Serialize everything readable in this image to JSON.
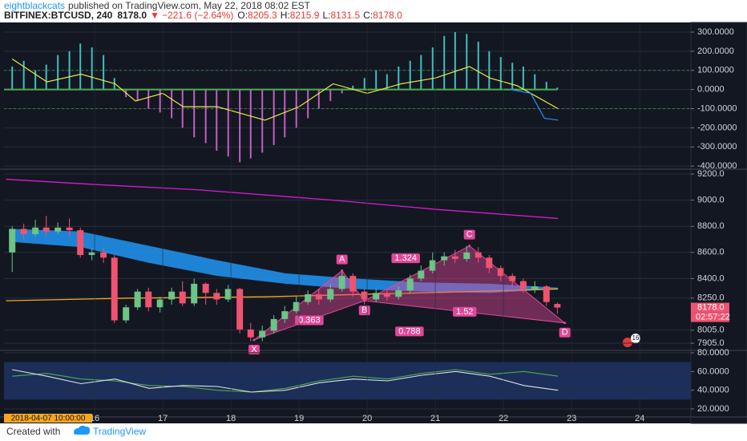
{
  "header": {
    "author": "eightblackcats",
    "published": "published on TradingView.com, May 22, 2018 08:02 EST",
    "symbol": "BITFINEX:BTCUSD, 240",
    "last": "8178.0",
    "arrow": "▼",
    "change": "−221.6 (−2.64%)",
    "ohlc": [
      {
        "label": "O:",
        "value": "8205.3"
      },
      {
        "label": "H:",
        "value": "8215.9"
      },
      {
        "label": "L:",
        "value": "8131.5"
      },
      {
        "label": "C:",
        "value": "8178.0"
      }
    ]
  },
  "footer": {
    "text": "Created with",
    "brand": "TradingView"
  },
  "badge": "16",
  "chart_data": [
    {
      "type": "oscillator",
      "xlim": [
        14.67,
        24.75
      ],
      "ylim": [
        -412,
        342
      ],
      "yticks": [
        {
          "value": 300,
          "label": "300.0000"
        },
        {
          "value": 200,
          "label": "200.0000"
        },
        {
          "value": 100,
          "label": "100.0000"
        },
        {
          "value": 0,
          "label": "0.0000"
        },
        {
          "value": -100,
          "label": "-100.0000"
        },
        {
          "value": -200,
          "label": "-200.0000"
        },
        {
          "value": -300,
          "label": "-300.0000"
        },
        {
          "value": -400,
          "label": "-400.0000"
        }
      ],
      "levels": [
        100,
        -100
      ],
      "level_color": "#4caf50",
      "zero_color": "#4caf50",
      "pos_color": "#3fbfbf",
      "neg_color": "#c45ec4",
      "x": [
        14.79,
        14.96,
        15.13,
        15.29,
        15.46,
        15.63,
        15.79,
        15.96,
        16.13,
        16.29,
        16.46,
        16.63,
        16.79,
        16.96,
        17.13,
        17.29,
        17.46,
        17.63,
        17.79,
        17.96,
        18.13,
        18.29,
        18.46,
        18.63,
        18.79,
        18.96,
        19.13,
        19.29,
        19.46,
        19.63,
        19.79,
        19.96,
        20.13,
        20.29,
        20.46,
        20.63,
        20.79,
        20.96,
        21.13,
        21.29,
        21.46,
        21.63,
        21.79,
        21.96,
        22.13,
        22.29,
        22.46,
        22.63,
        22.79
      ],
      "values": [
        120,
        150,
        100,
        130,
        180,
        200,
        240,
        220,
        180,
        60,
        -40,
        -60,
        -100,
        -120,
        -150,
        -200,
        -250,
        -280,
        -320,
        -350,
        -380,
        -360,
        -330,
        -290,
        -250,
        -200,
        -150,
        -100,
        -60,
        -20,
        20,
        60,
        100,
        80,
        120,
        150,
        180,
        220,
        280,
        300,
        290,
        250,
        200,
        170,
        140,
        120,
        80,
        40,
        10
      ],
      "series": [
        {
          "color": "#e8e84a",
          "x": [
            14.79,
            15.3,
            15.8,
            16.3,
            16.6,
            17.0,
            17.3,
            17.8,
            18.2,
            18.5,
            19.0,
            19.5,
            20.0,
            20.5,
            21.0,
            21.5,
            21.8,
            22.2,
            22.5,
            22.8
          ],
          "values": [
            160,
            40,
            80,
            30,
            -60,
            -20,
            -90,
            -90,
            -130,
            -160,
            -90,
            30,
            -20,
            30,
            60,
            120,
            60,
            20,
            -40,
            -100
          ]
        },
        {
          "color": "#2d8cf0",
          "x": [
            22.1,
            22.4,
            22.6,
            22.8
          ],
          "values": [
            0,
            -20,
            -150,
            -160
          ]
        }
      ]
    },
    {
      "type": "candlestick",
      "xlim": [
        14.67,
        24.75
      ],
      "ylim": [
        7850,
        9231
      ],
      "yticks": [
        {
          "value": 9200,
          "label": "9200.0"
        },
        {
          "value": 9000,
          "label": "9000.0"
        },
        {
          "value": 8800,
          "label": "8800.0"
        },
        {
          "value": 8600,
          "label": "8600.0"
        },
        {
          "value": 8400,
          "label": "8400.0"
        },
        {
          "value": 8250,
          "label": "8250.0"
        },
        {
          "value": 8005,
          "label": "8005.0"
        },
        {
          "value": 7905,
          "label": "7905.0"
        }
      ],
      "last_price": {
        "value": 8178,
        "label": "8178.0"
      },
      "countdown": "02:57:22",
      "up_color": "#6cc486",
      "down_color": "#ef5370",
      "x": [
        14.79,
        14.96,
        15.13,
        15.29,
        15.46,
        15.63,
        15.79,
        15.96,
        16.13,
        16.29,
        16.46,
        16.63,
        16.79,
        16.96,
        17.13,
        17.29,
        17.46,
        17.63,
        17.79,
        17.96,
        18.13,
        18.29,
        18.46,
        18.63,
        18.79,
        18.96,
        19.13,
        19.29,
        19.46,
        19.63,
        19.79,
        19.96,
        20.13,
        20.29,
        20.46,
        20.63,
        20.79,
        20.96,
        21.13,
        21.29,
        21.46,
        21.63,
        21.79,
        21.96,
        22.13,
        22.29,
        22.46,
        22.63,
        22.79
      ],
      "open": [
        8600,
        8780,
        8740,
        8790,
        8760,
        8790,
        8770,
        8580,
        8600,
        8560,
        8080,
        8180,
        8300,
        8180,
        8240,
        8300,
        8210,
        8360,
        8290,
        8240,
        8320,
        8010,
        7950,
        8000,
        8090,
        8150,
        8220,
        8280,
        8240,
        8320,
        8420,
        8300,
        8240,
        8290,
        8260,
        8310,
        8400,
        8460,
        8540,
        8570,
        8550,
        8600,
        8560,
        8480,
        8420,
        8380,
        8320,
        8340,
        8205.3
      ],
      "high": [
        8800,
        8820,
        8850,
        8880,
        8830,
        8860,
        8790,
        8630,
        8640,
        8580,
        8200,
        8320,
        8330,
        8260,
        8330,
        8380,
        8400,
        8370,
        8320,
        8350,
        8330,
        8060,
        8040,
        8120,
        8190,
        8260,
        8310,
        8320,
        8360,
        8470,
        8440,
        8320,
        8320,
        8310,
        8340,
        8430,
        8500,
        8600,
        8600,
        8620,
        8650,
        8640,
        8580,
        8500,
        8440,
        8400,
        8380,
        8350,
        8215.9
      ],
      "low": [
        8450,
        8700,
        8720,
        8730,
        8740,
        8720,
        8560,
        8540,
        8520,
        8060,
        8060,
        8160,
        8150,
        8140,
        8200,
        8190,
        8190,
        8200,
        8200,
        8220,
        7980,
        7920,
        7920,
        7980,
        8060,
        8130,
        8200,
        8200,
        8220,
        8300,
        8260,
        8200,
        8220,
        8230,
        8240,
        8290,
        8380,
        8440,
        8500,
        8520,
        8530,
        8520,
        8440,
        8380,
        8340,
        8290,
        8290,
        8190,
        8131.5
      ],
      "close": [
        8780,
        8740,
        8790,
        8760,
        8790,
        8770,
        8580,
        8600,
        8560,
        8080,
        8180,
        8300,
        8180,
        8240,
        8300,
        8210,
        8360,
        8290,
        8240,
        8320,
        8010,
        7950,
        8000,
        8090,
        8150,
        8220,
        8280,
        8240,
        8320,
        8420,
        8300,
        8240,
        8290,
        8260,
        8310,
        8400,
        8460,
        8540,
        8570,
        8550,
        8600,
        8560,
        8480,
        8420,
        8380,
        8320,
        8340,
        8220,
        8178
      ],
      "bands": [
        {
          "color": "#2196f3",
          "x": [
            14.79,
            15.8,
            16.8,
            17.8,
            18.8,
            19.8,
            20.8,
            21.8,
            22.8
          ],
          "upper": [
            8780,
            8760,
            8650,
            8540,
            8440,
            8400,
            8370,
            8360,
            8330
          ],
          "lower": [
            8680,
            8640,
            8520,
            8420,
            8360,
            8320,
            8300,
            8290,
            8320
          ]
        }
      ],
      "series": [
        {
          "color": "#d81bd0",
          "x": [
            14.7,
            16,
            17.5,
            19.5,
            21,
            22.8
          ],
          "values": [
            9160,
            9120,
            9080,
            9000,
            8930,
            8860
          ]
        },
        {
          "color": "#f5a623",
          "x": [
            14.7,
            16.5,
            18.5,
            20,
            21.5,
            22.8
          ],
          "values": [
            8230,
            8250,
            8260,
            8280,
            8300,
            8320
          ]
        }
      ],
      "pattern": {
        "color": "#e0489a",
        "points": [
          {
            "label": "X",
            "x": 18.34,
            "y": 7930
          },
          {
            "label": "A",
            "x": 19.63,
            "y": 8460
          },
          {
            "label": "B",
            "x": 19.96,
            "y": 8230
          },
          {
            "label": "C",
            "x": 21.5,
            "y": 8650
          },
          {
            "label": "D",
            "x": 22.9,
            "y": 8060
          }
        ],
        "ratios": [
          {
            "value": 0.363,
            "from": "X",
            "to": "B"
          },
          {
            "value": 1.324,
            "from": "A",
            "to": "C"
          },
          {
            "value": 0.788,
            "from": "X",
            "to": "D"
          },
          {
            "value": 1.52,
            "from": "B",
            "to": "D"
          }
        ]
      }
    },
    {
      "type": "line",
      "xlim": [
        14.67,
        24.75
      ],
      "ylim": [
        11.4,
        82.6
      ],
      "yticks": [
        {
          "value": 80,
          "label": "80.0000"
        },
        {
          "value": 60,
          "label": "60.0000"
        },
        {
          "value": 40,
          "label": "40.0000"
        },
        {
          "value": 20,
          "label": "20.0000"
        }
      ],
      "band": [
        30,
        70
      ],
      "band_color": "#1c2e5a",
      "xticks": [
        16,
        17,
        18,
        19,
        20,
        21,
        22,
        23,
        24
      ],
      "x_cursor_label": "2018-04-07 10:00:00",
      "series": [
        {
          "color": "#4caf50",
          "x": [
            14.79,
            15.3,
            15.8,
            16.3,
            16.8,
            17.3,
            17.8,
            18.3,
            18.8,
            19.3,
            19.8,
            20.3,
            20.8,
            21.3,
            21.8,
            22.3,
            22.8
          ],
          "values": [
            55,
            58,
            52,
            50,
            45,
            44,
            40,
            38,
            42,
            50,
            55,
            52,
            58,
            62,
            57,
            60,
            55
          ]
        },
        {
          "color": "#e0e0e0",
          "x": [
            14.79,
            15.3,
            15.8,
            16.3,
            16.8,
            17.3,
            17.8,
            18.3,
            18.8,
            19.3,
            19.8,
            20.3,
            20.8,
            21.3,
            21.8,
            22.3,
            22.8
          ],
          "values": [
            62,
            55,
            47,
            52,
            42,
            45,
            44,
            38,
            40,
            48,
            52,
            50,
            56,
            60,
            55,
            45,
            40
          ]
        }
      ]
    }
  ]
}
